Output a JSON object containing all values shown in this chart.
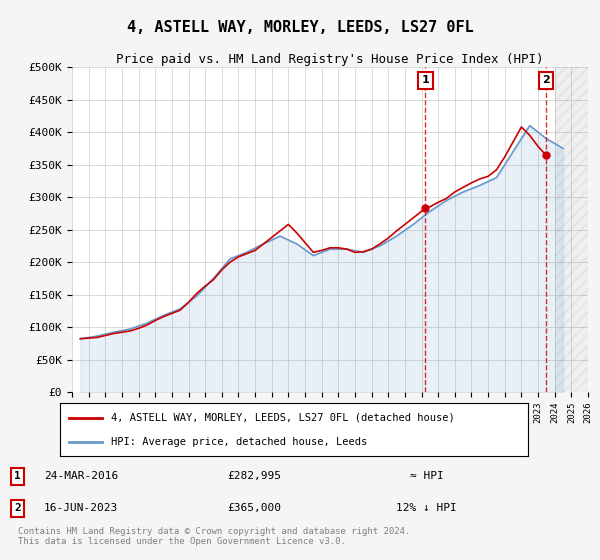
{
  "title": "4, ASTELL WAY, MORLEY, LEEDS, LS27 0FL",
  "subtitle": "Price paid vs. HM Land Registry's House Price Index (HPI)",
  "footnote": "Contains HM Land Registry data © Crown copyright and database right 2024.\nThis data is licensed under the Open Government Licence v3.0.",
  "legend_line1": "4, ASTELL WAY, MORLEY, LEEDS, LS27 0FL (detached house)",
  "legend_line2": "HPI: Average price, detached house, Leeds",
  "transaction1_label": "1",
  "transaction1_date": "24-MAR-2016",
  "transaction1_price": "£282,995",
  "transaction1_hpi": "≈ HPI",
  "transaction1_year": 2016.23,
  "transaction1_value": 282995,
  "transaction2_label": "2",
  "transaction2_date": "16-JUN-2023",
  "transaction2_price": "£365,000",
  "transaction2_hpi": "12% ↓ HPI",
  "transaction2_year": 2023.46,
  "transaction2_value": 365000,
  "ylim": [
    0,
    500000
  ],
  "xlim": [
    1995,
    2026
  ],
  "yticks": [
    0,
    50000,
    100000,
    150000,
    200000,
    250000,
    300000,
    350000,
    400000,
    450000,
    500000
  ],
  "ytick_labels": [
    "£0",
    "£50K",
    "£100K",
    "£150K",
    "£200K",
    "£250K",
    "£300K",
    "£350K",
    "£400K",
    "£450K",
    "£500K"
  ],
  "xticks": [
    1995,
    1996,
    1997,
    1998,
    1999,
    2000,
    2001,
    2002,
    2003,
    2004,
    2005,
    2006,
    2007,
    2008,
    2009,
    2010,
    2011,
    2012,
    2013,
    2014,
    2015,
    2016,
    2017,
    2018,
    2019,
    2020,
    2021,
    2022,
    2023,
    2024,
    2025,
    2026
  ],
  "hpi_color": "#6699cc",
  "property_color": "#cc0000",
  "vline_color": "#cc0000",
  "bg_color": "#f5f5f5",
  "plot_bg": "#ffffff",
  "future_hatch_color": "#aaaaaa",
  "hpi_data": {
    "years": [
      1995.5,
      1996.5,
      1997.5,
      1998.5,
      1999.5,
      2000.5,
      2001.5,
      2002.5,
      2003.5,
      2004.5,
      2005.5,
      2006.5,
      2007.5,
      2008.5,
      2009.5,
      2010.5,
      2011.5,
      2012.5,
      2013.5,
      2014.5,
      2015.5,
      2016.5,
      2017.5,
      2018.5,
      2019.5,
      2020.5,
      2021.5,
      2022.5,
      2023.5,
      2024.5
    ],
    "values": [
      82000,
      86000,
      92000,
      97000,
      106000,
      118000,
      128000,
      148000,
      175000,
      205000,
      215000,
      228000,
      240000,
      228000,
      210000,
      220000,
      220000,
      215000,
      225000,
      240000,
      258000,
      278000,
      295000,
      308000,
      318000,
      330000,
      370000,
      410000,
      390000,
      375000
    ]
  },
  "property_data": {
    "years": [
      1995.5,
      1996.0,
      1996.5,
      1997.0,
      1997.5,
      1998.0,
      1998.5,
      1999.0,
      1999.5,
      2000.0,
      2000.5,
      2001.0,
      2001.5,
      2002.0,
      2002.5,
      2003.0,
      2003.5,
      2004.0,
      2004.5,
      2005.0,
      2005.5,
      2006.0,
      2006.5,
      2007.0,
      2007.5,
      2008.0,
      2008.5,
      2009.0,
      2009.5,
      2010.0,
      2010.5,
      2011.0,
      2011.5,
      2012.0,
      2012.5,
      2013.0,
      2013.5,
      2014.0,
      2014.5,
      2015.0,
      2015.5,
      2016.23,
      2016.5,
      2017.0,
      2017.5,
      2018.0,
      2018.5,
      2019.0,
      2019.5,
      2020.0,
      2020.5,
      2021.0,
      2021.5,
      2022.0,
      2022.5,
      2023.0,
      2023.46
    ],
    "values": [
      82000,
      83000,
      84000,
      87000,
      90000,
      92000,
      94000,
      98000,
      103000,
      110000,
      116000,
      121000,
      126000,
      138000,
      152000,
      163000,
      173000,
      188000,
      200000,
      208000,
      213000,
      218000,
      228000,
      238000,
      248000,
      258000,
      245000,
      230000,
      215000,
      218000,
      222000,
      222000,
      220000,
      215000,
      216000,
      220000,
      228000,
      237000,
      248000,
      258000,
      268000,
      282995,
      285000,
      292000,
      298000,
      308000,
      315000,
      322000,
      328000,
      332000,
      342000,
      362000,
      385000,
      408000,
      395000,
      378000,
      365000
    ]
  }
}
